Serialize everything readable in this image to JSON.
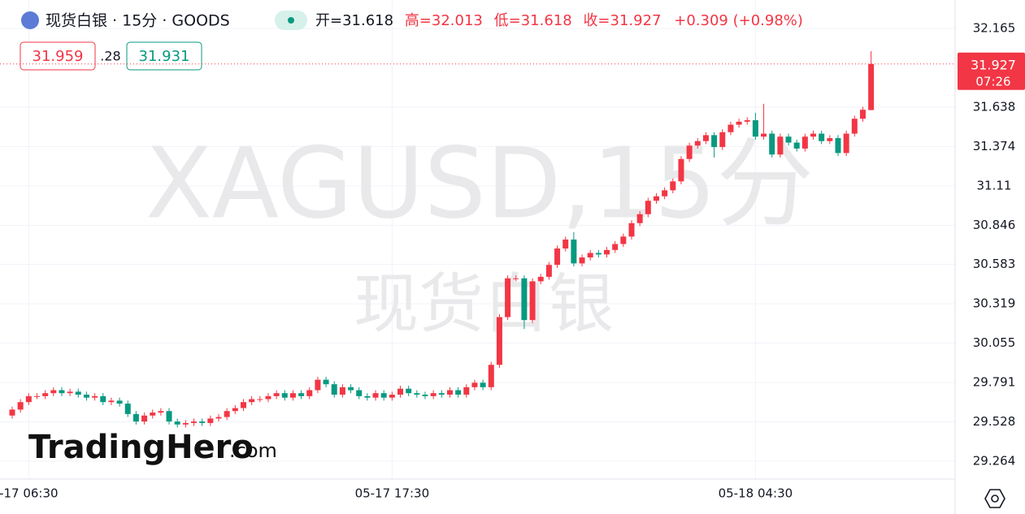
{
  "chart_data": {
    "type": "candlestick",
    "title": "现货白银 · 15分 · GOODS",
    "ohlc_header": {
      "open": "开=31.618",
      "high": "高=32.013",
      "low": "低=31.618",
      "close": "收=31.927",
      "change": "+0.309 (+0.98%)"
    },
    "quote": {
      "sell": "31.959",
      "spread": ".28",
      "buy": "31.931"
    },
    "last_price": {
      "label": "31.927",
      "countdown": "07:26"
    },
    "watermark": {
      "symbol": "XAGUSD,15分",
      "name": "现货白银"
    },
    "logo": {
      "brand": "TradingHero",
      "suffix": ".com"
    },
    "up_color": "#f23645",
    "down_color": "#089981",
    "categories": [
      null,
      null,
      "-17 06:30",
      null,
      null,
      null,
      null,
      null,
      null,
      null,
      null,
      null,
      null,
      null,
      null,
      null,
      null,
      null,
      null,
      null,
      null,
      null,
      null,
      null,
      null,
      null,
      null,
      null,
      null,
      null,
      null,
      null,
      null,
      null,
      null,
      null,
      null,
      null,
      null,
      null,
      null,
      null,
      null,
      null,
      null,
      null,
      "05-17 17:30",
      null,
      null,
      null,
      null,
      null,
      null,
      null,
      null,
      null,
      null,
      null,
      null,
      null,
      null,
      null,
      null,
      null,
      null,
      null,
      null,
      null,
      null,
      null,
      null,
      null,
      null,
      null,
      null,
      null,
      null,
      null,
      null,
      null,
      null,
      null,
      null,
      null,
      null,
      null,
      null,
      null,
      null,
      null,
      "05-18 04:30",
      null,
      null,
      null,
      null,
      null,
      null,
      null,
      null,
      null,
      null,
      null,
      null,
      null,
      null
    ],
    "open": [
      29.57,
      29.61,
      29.66,
      29.7,
      29.7,
      29.72,
      29.74,
      29.72,
      29.73,
      29.71,
      29.69,
      29.7,
      29.66,
      29.67,
      29.65,
      29.58,
      29.53,
      29.57,
      29.59,
      29.6,
      29.53,
      29.51,
      29.52,
      29.53,
      29.52,
      29.55,
      29.56,
      29.6,
      29.62,
      29.66,
      29.68,
      29.68,
      29.7,
      29.72,
      29.69,
      29.72,
      29.7,
      29.74,
      29.81,
      29.78,
      29.71,
      29.76,
      29.74,
      29.7,
      29.69,
      29.72,
      29.69,
      29.71,
      29.75,
      29.72,
      29.71,
      29.7,
      29.72,
      29.71,
      29.74,
      29.71,
      29.76,
      29.79,
      29.76,
      29.91,
      30.23,
      30.49,
      30.49,
      30.21,
      30.47,
      30.5,
      30.58,
      30.69,
      30.75,
      30.59,
      30.63,
      30.66,
      30.65,
      30.68,
      30.72,
      30.77,
      30.86,
      30.92,
      31.01,
      31.04,
      31.08,
      31.14,
      31.29,
      31.38,
      31.41,
      31.45,
      31.37,
      31.47,
      31.52,
      31.54,
      31.55,
      31.44,
      31.46,
      31.32,
      31.44,
      31.4,
      31.36,
      31.44,
      31.46,
      31.41,
      31.43,
      31.33,
      31.46,
      31.56,
      31.618
    ],
    "high": [
      29.63,
      29.68,
      29.72,
      29.72,
      29.74,
      29.76,
      29.76,
      29.75,
      29.75,
      29.73,
      29.72,
      29.72,
      29.69,
      29.69,
      29.67,
      29.6,
      29.59,
      29.61,
      29.62,
      29.62,
      29.55,
      29.54,
      29.55,
      29.55,
      29.57,
      29.58,
      29.62,
      29.64,
      29.68,
      29.7,
      29.7,
      29.72,
      29.74,
      29.74,
      29.74,
      29.74,
      29.76,
      29.83,
      29.83,
      29.8,
      29.78,
      29.78,
      29.76,
      29.72,
      29.74,
      29.74,
      29.73,
      29.77,
      29.77,
      29.74,
      29.73,
      29.74,
      29.74,
      29.76,
      29.76,
      29.78,
      29.81,
      29.81,
      29.93,
      30.25,
      30.51,
      30.51,
      30.51,
      30.49,
      30.52,
      30.6,
      30.71,
      30.77,
      30.8,
      30.65,
      30.68,
      30.68,
      30.7,
      30.74,
      30.79,
      30.88,
      30.94,
      31.03,
      31.06,
      31.1,
      31.16,
      31.31,
      31.4,
      31.43,
      31.47,
      31.47,
      31.49,
      31.54,
      31.56,
      31.57,
      31.6,
      31.66,
      31.48,
      31.46,
      31.46,
      31.42,
      31.46,
      31.48,
      31.48,
      31.45,
      31.45,
      31.48,
      31.58,
      31.64,
      32.013
    ],
    "low": [
      29.55,
      29.59,
      29.64,
      29.68,
      29.68,
      29.7,
      29.7,
      29.7,
      29.69,
      29.67,
      29.67,
      29.64,
      29.64,
      29.63,
      29.56,
      29.51,
      29.51,
      29.55,
      29.57,
      29.51,
      29.49,
      29.49,
      29.5,
      29.5,
      29.5,
      29.53,
      29.54,
      29.58,
      29.6,
      29.64,
      29.66,
      29.66,
      29.68,
      29.67,
      29.67,
      29.68,
      29.68,
      29.72,
      29.76,
      29.69,
      29.69,
      29.72,
      29.68,
      29.67,
      29.67,
      29.67,
      29.67,
      29.69,
      29.7,
      29.69,
      29.68,
      29.68,
      29.69,
      29.69,
      29.69,
      29.69,
      29.74,
      29.74,
      29.74,
      29.89,
      30.21,
      30.47,
      30.15,
      30.19,
      30.45,
      30.48,
      30.56,
      30.67,
      30.57,
      30.57,
      30.61,
      30.63,
      30.63,
      30.66,
      30.7,
      30.75,
      30.84,
      30.9,
      30.99,
      31.02,
      31.06,
      31.12,
      31.27,
      31.36,
      31.39,
      31.3,
      31.35,
      31.45,
      31.5,
      31.52,
      31.42,
      31.42,
      31.3,
      31.3,
      31.38,
      31.34,
      31.34,
      31.42,
      31.39,
      31.39,
      31.31,
      31.31,
      31.44,
      31.54,
      31.618
    ],
    "close": [
      29.61,
      29.66,
      29.7,
      29.7,
      29.72,
      29.74,
      29.72,
      29.73,
      29.71,
      29.69,
      29.7,
      29.66,
      29.67,
      29.65,
      29.58,
      29.53,
      29.57,
      29.59,
      29.6,
      29.53,
      29.51,
      29.52,
      29.53,
      29.52,
      29.55,
      29.56,
      29.6,
      29.62,
      29.66,
      29.68,
      29.68,
      29.7,
      29.72,
      29.69,
      29.72,
      29.7,
      29.74,
      29.81,
      29.78,
      29.71,
      29.76,
      29.74,
      29.7,
      29.69,
      29.72,
      29.69,
      29.71,
      29.75,
      29.72,
      29.71,
      29.7,
      29.72,
      29.71,
      29.74,
      29.71,
      29.76,
      29.79,
      29.76,
      29.91,
      30.23,
      30.49,
      30.49,
      30.21,
      30.47,
      30.5,
      30.58,
      30.69,
      30.75,
      30.59,
      30.63,
      30.66,
      30.65,
      30.68,
      30.72,
      30.77,
      30.86,
      30.92,
      31.01,
      31.04,
      31.08,
      31.14,
      31.29,
      31.38,
      31.41,
      31.45,
      31.37,
      31.47,
      31.52,
      31.54,
      31.55,
      31.44,
      31.46,
      31.32,
      31.44,
      31.4,
      31.36,
      31.44,
      31.46,
      31.41,
      31.43,
      31.33,
      31.46,
      31.56,
      31.62,
      31.927
    ],
    "last_value": 31.927,
    "ylim": [
      29.144,
      32.356
    ],
    "yticks": [
      32.165,
      31.638,
      31.374,
      31.11,
      30.846,
      30.583,
      30.319,
      30.055,
      29.791,
      29.528,
      29.264
    ],
    "grid": true
  }
}
